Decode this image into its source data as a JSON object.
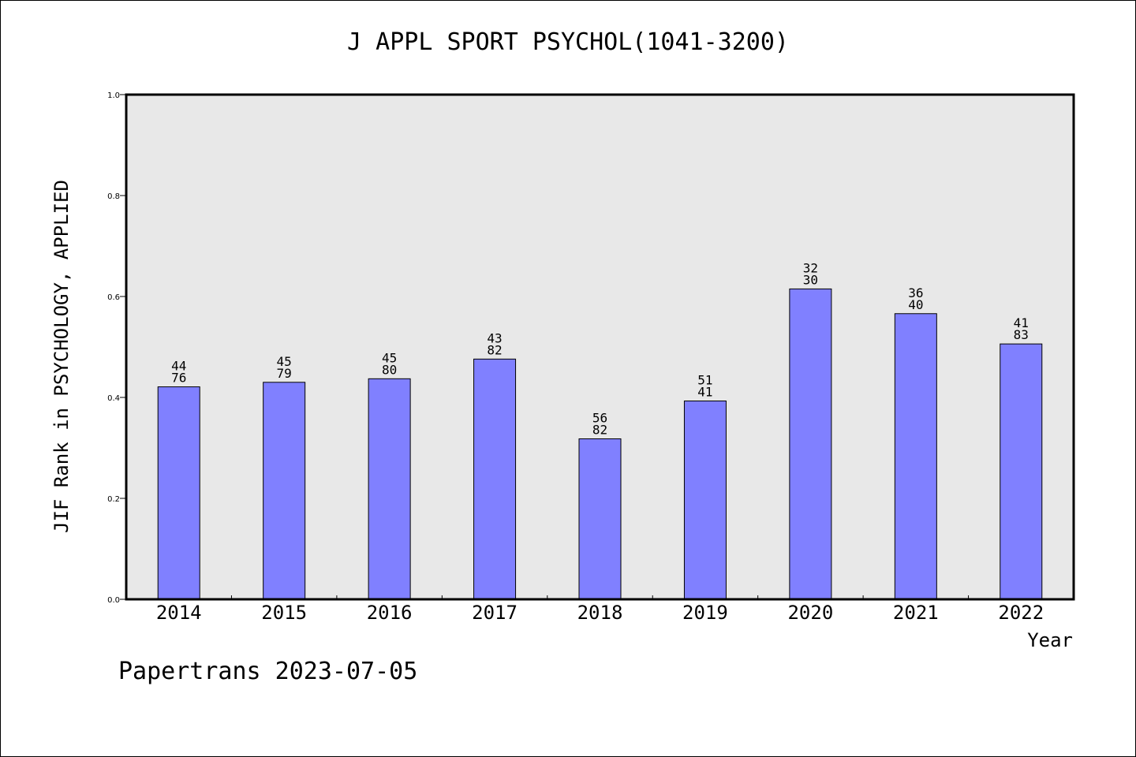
{
  "title": "J APPL SPORT PSYCHOL(1041-3200)",
  "footer": "Papertrans 2023-07-05",
  "chart_data": {
    "type": "bar",
    "title": "J APPL SPORT PSYCHOL(1041-3200)",
    "xlabel": "Year",
    "ylabel": "JIF Rank in PSYCHOLOGY, APPLIED",
    "ylim": [
      0,
      1.0
    ],
    "yticks": [
      "0.0",
      "0.2",
      "0.4",
      "0.6",
      "0.8",
      "1.0"
    ],
    "grid": false,
    "legend": "none",
    "categories": [
      "2014",
      "2015",
      "2016",
      "2017",
      "2018",
      "2019",
      "2020",
      "2021",
      "2022"
    ],
    "values": [
      0.421,
      0.43,
      0.437,
      0.476,
      0.318,
      0.393,
      0.615,
      0.566,
      0.506
    ],
    "labels_top": [
      "44",
      "45",
      "45",
      "43",
      "56",
      "51",
      "32",
      "36",
      "41"
    ],
    "labels_bottom": [
      "76",
      "79",
      "80",
      "82",
      "82",
      "41",
      "30",
      "40",
      "83"
    ],
    "colors": {
      "bar": "#8080ff",
      "plot_bg": "#e8e8e8",
      "axis": "#000000"
    }
  }
}
